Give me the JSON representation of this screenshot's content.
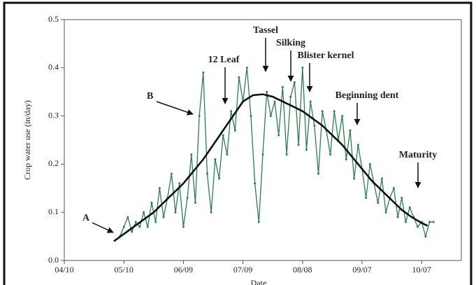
{
  "chart_data": {
    "type": "line",
    "ylabel": "Crop water use (in/day)",
    "xlabel": "Date",
    "xlim": [
      100,
      300
    ],
    "xticks": [
      {
        "value": 100,
        "label": "04/10"
      },
      {
        "value": 130,
        "label": "05/10"
      },
      {
        "value": 160,
        "label": "06/09"
      },
      {
        "value": 190,
        "label": "07/09"
      },
      {
        "value": 220,
        "label": "08/08"
      },
      {
        "value": 250,
        "label": "09/07"
      },
      {
        "value": 280,
        "label": "10/07"
      }
    ],
    "ylim": [
      0,
      0.5
    ],
    "yticks": [
      {
        "value": 0,
        "label": "0.0"
      },
      0.1,
      0.2,
      0.3,
      0.4,
      0.5
    ],
    "series": [
      {
        "color": "#2e7d4f",
        "x": [
          128,
          130,
          132,
          134,
          136,
          138,
          140,
          142,
          144,
          146,
          148,
          150,
          152,
          154,
          156,
          158,
          160,
          162,
          164,
          166,
          168,
          170,
          172,
          174,
          176,
          178,
          180,
          182,
          184,
          186,
          188,
          190,
          192,
          194,
          196,
          198,
          200,
          202,
          204,
          206,
          208,
          210,
          212,
          214,
          216,
          218,
          220,
          222,
          224,
          226,
          228,
          230,
          232,
          234,
          236,
          238,
          240,
          242,
          244,
          246,
          248,
          250,
          252,
          254,
          256,
          258,
          260,
          262,
          264,
          266,
          268,
          270,
          272,
          274,
          276,
          278,
          280,
          282,
          284,
          286
        ],
        "values": [
          0.05,
          0.07,
          0.09,
          0.06,
          0.08,
          0.07,
          0.1,
          0.07,
          0.12,
          0.08,
          0.15,
          0.09,
          0.13,
          0.18,
          0.1,
          0.16,
          0.07,
          0.13,
          0.22,
          0.12,
          0.3,
          0.39,
          0.18,
          0.1,
          0.21,
          0.17,
          0.26,
          0.22,
          0.31,
          0.27,
          0.38,
          0.33,
          0.4,
          0.3,
          0.16,
          0.08,
          0.22,
          0.35,
          0.3,
          0.33,
          0.26,
          0.36,
          0.22,
          0.34,
          0.37,
          0.24,
          0.4,
          0.23,
          0.33,
          0.28,
          0.18,
          0.31,
          0.27,
          0.22,
          0.31,
          0.25,
          0.3,
          0.21,
          0.27,
          0.17,
          0.24,
          0.19,
          0.13,
          0.2,
          0.16,
          0.12,
          0.17,
          0.1,
          0.13,
          0.15,
          0.09,
          0.13,
          0.08,
          0.11,
          0.09,
          0.07,
          0.08,
          0.05,
          0.08,
          0.08
        ]
      },
      {
        "color": "#111111",
        "x": [
          125,
          130,
          135,
          140,
          145,
          150,
          155,
          160,
          165,
          170,
          175,
          180,
          185,
          190,
          195,
          200,
          205,
          210,
          215,
          220,
          225,
          230,
          235,
          240,
          245,
          250,
          255,
          260,
          265,
          270,
          275,
          280,
          283
        ],
        "values": [
          0.04,
          0.055,
          0.07,
          0.085,
          0.1,
          0.12,
          0.14,
          0.16,
          0.185,
          0.21,
          0.24,
          0.27,
          0.3,
          0.33,
          0.343,
          0.345,
          0.34,
          0.33,
          0.32,
          0.31,
          0.295,
          0.28,
          0.26,
          0.24,
          0.215,
          0.19,
          0.165,
          0.145,
          0.125,
          0.105,
          0.09,
          0.078,
          0.072
        ]
      }
    ],
    "annotations": [
      {
        "text": "A"
      },
      {
        "text": "B"
      },
      {
        "text": "12 Leaf"
      },
      {
        "text": "Tassel"
      },
      {
        "text": "Silking"
      },
      {
        "text": "Blister kernel"
      },
      {
        "text": "Beginning dent"
      },
      {
        "text": "Maturity"
      }
    ]
  }
}
